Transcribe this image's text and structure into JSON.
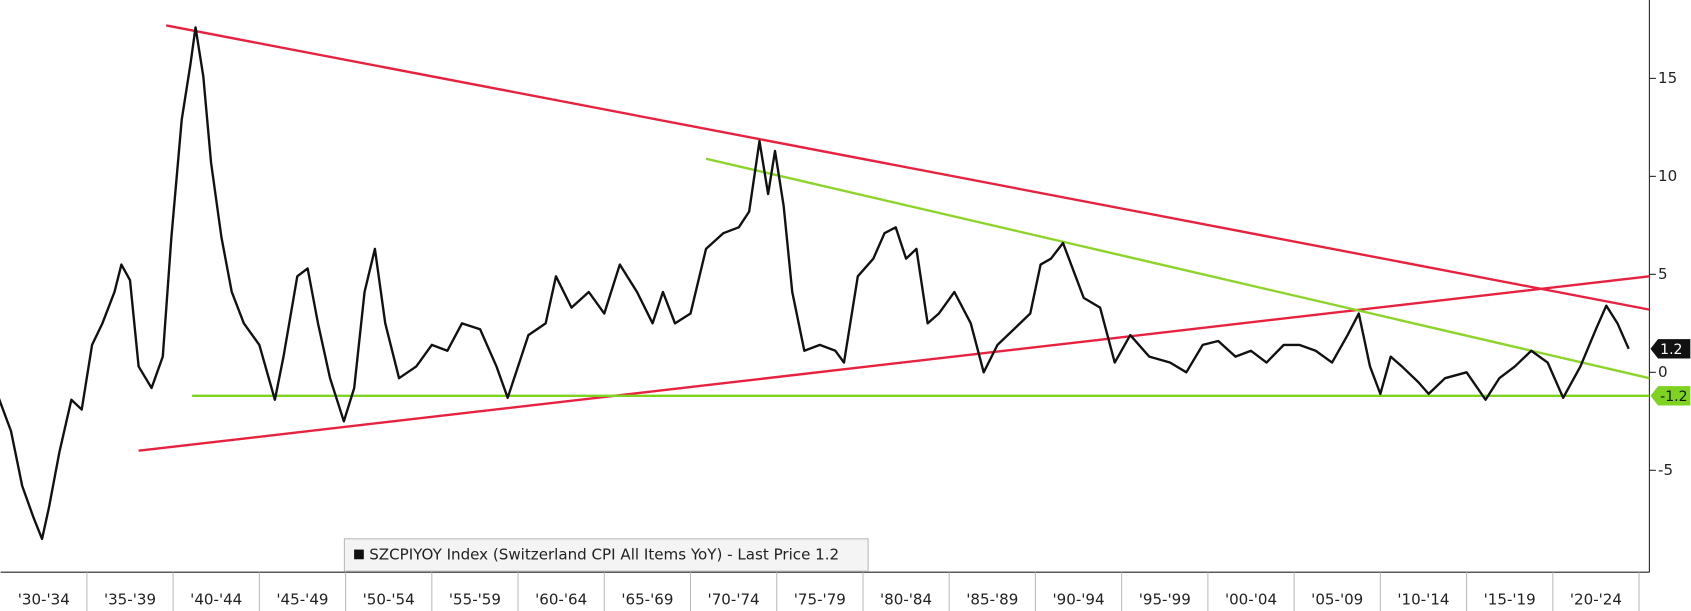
{
  "chart_data": {
    "type": "line",
    "x": [
      1929.8,
      1930.6,
      1931.25,
      1931.9,
      1932.4,
      1932.8,
      1933.4,
      1934.1,
      1934.7,
      1935.3,
      1935.9,
      1936.6,
      1937,
      1937.5,
      1938,
      1938.75,
      1939.4,
      1939.9,
      1940.5,
      1941,
      1941.3,
      1941.75,
      1942.2,
      1942.8,
      1943.4,
      1944.1,
      1945,
      1945.9,
      1946.4,
      1947.2,
      1947.8,
      1948.4,
      1949.1,
      1949.9,
      1950.5,
      1951.1,
      1951.7,
      1952.3,
      1953.1,
      1954.1,
      1955,
      1955.9,
      1956.75,
      1957.8,
      1958.75,
      1959.4,
      1960,
      1960.6,
      1961.6,
      1962.2,
      1963.1,
      1964.1,
      1965,
      1965.9,
      1966.9,
      1967.8,
      1968.4,
      1969.1,
      1970,
      1970.9,
      1971.9,
      1972.8,
      1973.4,
      1974,
      1974.5,
      1974.9,
      1975.4,
      1975.9,
      1976.6,
      1977.5,
      1978.4,
      1978.9,
      1979.7,
      1980.6,
      1981.25,
      1981.9,
      1982.5,
      1983.1,
      1983.75,
      1984.4,
      1985.3,
      1986.25,
      1987,
      1987.8,
      1988.75,
      1989.7,
      1990.3,
      1990.9,
      1991.6,
      1992.2,
      1992.8,
      1993.75,
      1994.6,
      1995.5,
      1996.6,
      1997.8,
      1998.75,
      1999.7,
      2000.6,
      2001.6,
      2002.5,
      2003.4,
      2004.4,
      2005.3,
      2006.25,
      2007.2,
      2008.1,
      2008.75,
      2009.4,
      2010,
      2010.6,
      2011.25,
      2012.2,
      2012.8,
      2013.75,
      2015,
      2016.1,
      2016.9,
      2017.8,
      2018.75,
      2019.7,
      2020.6,
      2021.6,
      2022.5,
      2023.1,
      2023.75,
      2024.4
    ],
    "series": [
      {
        "name": "SZCPIYOY Index (Switzerland CPI All Items YoY) - Last Price 1.2",
        "color": "#111111",
        "values": [
          -1.1,
          -3,
          -5.8,
          -7.4,
          -8.5,
          -6.9,
          -4.1,
          -1.4,
          -1.9,
          1.4,
          2.5,
          4.1,
          5.5,
          4.7,
          0.3,
          -0.8,
          0.8,
          6.9,
          12.9,
          15.7,
          17.6,
          15.1,
          10.7,
          6.9,
          4.1,
          2.5,
          1.4,
          -1.4,
          0.8,
          4.9,
          5.3,
          2.5,
          -0.3,
          -2.5,
          -0.8,
          4.1,
          6.3,
          2.5,
          -0.3,
          0.3,
          1.4,
          1.1,
          2.5,
          2.2,
          0.3,
          -1.3,
          0.3,
          1.9,
          2.5,
          4.9,
          3.3,
          4.1,
          3.0,
          5.5,
          4.1,
          2.5,
          4.1,
          2.5,
          3.0,
          6.3,
          7.1,
          7.4,
          8.2,
          11.8,
          9.1,
          11.3,
          8.5,
          4.1,
          1.1,
          1.4,
          1.1,
          0.5,
          4.9,
          5.8,
          7.1,
          7.4,
          5.8,
          6.3,
          2.5,
          3.0,
          4.1,
          2.5,
          0,
          1.4,
          2.2,
          3.0,
          5.5,
          5.8,
          6.6,
          5.2,
          3.8,
          3.3,
          0.5,
          1.9,
          0.8,
          0.5,
          0,
          1.4,
          1.6,
          0.8,
          1.1,
          0.5,
          1.4,
          1.4,
          1.1,
          0.5,
          1.9,
          3.0,
          0.3,
          -1.1,
          0.8,
          0.3,
          -0.5,
          -1.1,
          -0.3,
          0,
          -1.4,
          -0.3,
          0.3,
          1.1,
          0.5,
          -1.3,
          0.3,
          2.2,
          3.4,
          2.5,
          1.2
        ]
      }
    ],
    "trendlines": [
      {
        "color": "#e8213f",
        "x": [
          1939.6,
          2025.6
        ],
        "values": [
          17.7,
          3.2
        ]
      },
      {
        "color": "#e8213f",
        "x": [
          1938,
          2025.6
        ],
        "values": [
          -4.0,
          4.9
        ]
      },
      {
        "color": "#8cd42a",
        "x": [
          1970.9,
          2025.6
        ],
        "values": [
          10.9,
          -0.3
        ]
      },
      {
        "color": "#7ed321",
        "x": [
          1941.1,
          2025.6
        ],
        "values": [
          -1.2,
          -1.2
        ]
      }
    ],
    "tags": [
      {
        "value": 1.2,
        "color": "#111111",
        "text_color": "#ffffff"
      },
      {
        "value": -1.2,
        "color": "#7ed321",
        "text_color": "#111111"
      }
    ],
    "xlim": [
      1930,
      2025.6
    ],
    "ylim": [
      -10.2,
      19
    ],
    "yticks": [
      -5,
      0,
      5,
      10,
      15
    ],
    "xticks": [
      {
        "value": 1932.5,
        "label": "'30-'34"
      },
      {
        "value": 1937.5,
        "label": "'35-'39"
      },
      {
        "value": 1942.5,
        "label": "'40-'44"
      },
      {
        "value": 1947.5,
        "label": "'45-'49"
      },
      {
        "value": 1952.5,
        "label": "'50-'54"
      },
      {
        "value": 1957.5,
        "label": "'55-'59"
      },
      {
        "value": 1962.5,
        "label": "'60-'64"
      },
      {
        "value": 1967.5,
        "label": "'65-'69"
      },
      {
        "value": 1972.5,
        "label": "'70-'74"
      },
      {
        "value": 1977.5,
        "label": "'75-'79"
      },
      {
        "value": 1982.5,
        "label": "'80-'84"
      },
      {
        "value": 1987.5,
        "label": "'85-'89"
      },
      {
        "value": 1992.5,
        "label": "'90-'94"
      },
      {
        "value": 1997.5,
        "label": "'95-'99"
      },
      {
        "value": 2002.5,
        "label": "'00-'04"
      },
      {
        "value": 2007.5,
        "label": "'05-'09"
      },
      {
        "value": 2012.5,
        "label": "'10-'14"
      },
      {
        "value": 2017.5,
        "label": "'15-'19"
      },
      {
        "value": 2022.5,
        "label": "'20-'24"
      }
    ],
    "legend": "bottom-center"
  }
}
